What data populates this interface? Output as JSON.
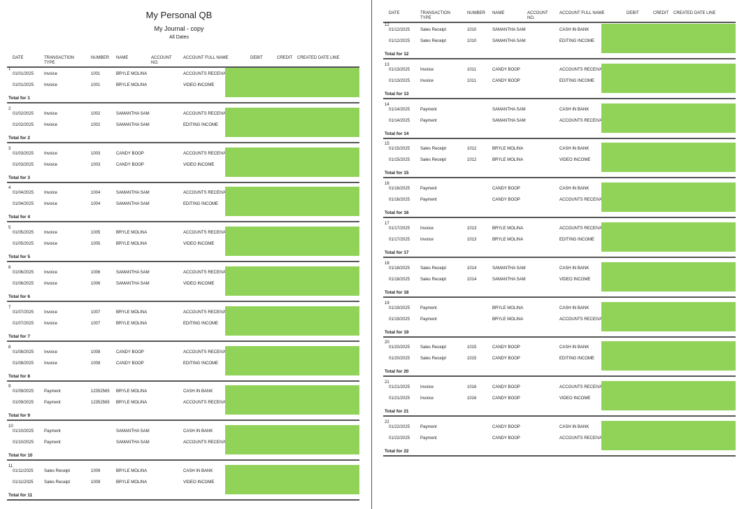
{
  "report": {
    "title": "My Personal QB",
    "subtitle": "My Journal - copy",
    "date_range": "All Dates"
  },
  "columns": [
    {
      "key": "date",
      "label": "DATE"
    },
    {
      "key": "type",
      "label": "TRANSACTION TYPE"
    },
    {
      "key": "number",
      "label": "NUMBER"
    },
    {
      "key": "name",
      "label": "NAME"
    },
    {
      "key": "acct_no",
      "label": "ACCOUNT NO."
    },
    {
      "key": "acct_full",
      "label": "ACCOUNT FULL NAME"
    },
    {
      "key": "debit",
      "label": "DEBIT"
    },
    {
      "key": "credit",
      "label": "CREDIT"
    },
    {
      "key": "created",
      "label": "CREATED DATE LINE"
    }
  ],
  "total_prefix": "Total for",
  "groups": [
    {
      "id": "1",
      "rows": [
        {
          "date": "01/01/2025",
          "type": "Invoice",
          "number": "1001",
          "name": "BRYLE MOLINA",
          "account": "ACCOUNTS RECEIVABLE"
        },
        {
          "date": "01/01/2025",
          "type": "Invoice",
          "number": "1001",
          "name": "BRYLE MOLINA",
          "account": "VIDEO INCOME"
        }
      ]
    },
    {
      "id": "2",
      "rows": [
        {
          "date": "01/02/2025",
          "type": "Invoice",
          "number": "1002",
          "name": "SAMANTHA SAM",
          "account": "ACCOUNTS RECEIVABLE"
        },
        {
          "date": "01/02/2025",
          "type": "Invoice",
          "number": "1002",
          "name": "SAMANTHA SAM",
          "account": "EDITING INCOME"
        }
      ]
    },
    {
      "id": "3",
      "rows": [
        {
          "date": "01/03/2025",
          "type": "Invoice",
          "number": "1003",
          "name": "CANDY BOOP",
          "account": "ACCOUNTS RECEIVABLE"
        },
        {
          "date": "01/03/2025",
          "type": "Invoice",
          "number": "1003",
          "name": "CANDY BOOP",
          "account": "VIDEO INCOME"
        }
      ]
    },
    {
      "id": "4",
      "rows": [
        {
          "date": "01/04/2025",
          "type": "Invoice",
          "number": "1004",
          "name": "SAMANTHA SAM",
          "account": "ACCOUNTS RECEIVABLE"
        },
        {
          "date": "01/04/2025",
          "type": "Invoice",
          "number": "1004",
          "name": "SAMANTHA SAM",
          "account": "EDITING INCOME"
        }
      ]
    },
    {
      "id": "5",
      "rows": [
        {
          "date": "01/05/2025",
          "type": "Invoice",
          "number": "1005",
          "name": "BRYLE MOLINA",
          "account": "ACCOUNTS RECEIVABLE"
        },
        {
          "date": "01/05/2025",
          "type": "Invoice",
          "number": "1005",
          "name": "BRYLE MOLINA",
          "account": "VIDEO INCOME"
        }
      ]
    },
    {
      "id": "6",
      "rows": [
        {
          "date": "01/06/2025",
          "type": "Invoice",
          "number": "1006",
          "name": "SAMANTHA SAM",
          "account": "ACCOUNTS RECEIVABLE"
        },
        {
          "date": "01/06/2025",
          "type": "Invoice",
          "number": "1006",
          "name": "SAMANTHA SAM",
          "account": "VIDEO INCOME"
        }
      ]
    },
    {
      "id": "7",
      "rows": [
        {
          "date": "01/07/2025",
          "type": "Invoice",
          "number": "1007",
          "name": "BRYLE MOLINA",
          "account": "ACCOUNTS RECEIVABLE"
        },
        {
          "date": "01/07/2025",
          "type": "Invoice",
          "number": "1007",
          "name": "BRYLE MOLINA",
          "account": "EDITING INCOME"
        }
      ]
    },
    {
      "id": "8",
      "rows": [
        {
          "date": "01/08/2025",
          "type": "Invoice",
          "number": "1008",
          "name": "CANDY BOOP",
          "account": "ACCOUNTS RECEIVABLE"
        },
        {
          "date": "01/08/2025",
          "type": "Invoice",
          "number": "1008",
          "name": "CANDY BOOP",
          "account": "EDITING INCOME"
        }
      ]
    },
    {
      "id": "9",
      "rows": [
        {
          "date": "01/09/2025",
          "type": "Payment",
          "number": "12352565",
          "name": "BRYLE MOLINA",
          "account": "CASH IN BANK"
        },
        {
          "date": "01/09/2025",
          "type": "Payment",
          "number": "12352565",
          "name": "BRYLE MOLINA",
          "account": "ACCOUNTS RECEIVABLE"
        }
      ]
    },
    {
      "id": "10",
      "rows": [
        {
          "date": "01/10/2025",
          "type": "Payment",
          "number": "",
          "name": "SAMANTHA SAM",
          "account": "CASH IN BANK"
        },
        {
          "date": "01/10/2025",
          "type": "Payment",
          "number": "",
          "name": "SAMANTHA SAM",
          "account": "ACCOUNTS RECEIVABLE"
        }
      ]
    },
    {
      "id": "11",
      "rows": [
        {
          "date": "01/11/2025",
          "type": "Sales Receipt",
          "number": "1009",
          "name": "BRYLE MOLINA",
          "account": "CASH IN BANK"
        },
        {
          "date": "01/11/2025",
          "type": "Sales Receipt",
          "number": "1009",
          "name": "BRYLE MOLINA",
          "account": "VIDEO INCOME"
        }
      ]
    },
    {
      "id": "12",
      "rows": [
        {
          "date": "01/12/2025",
          "type": "Sales Receipt",
          "number": "1010",
          "name": "SAMANTHA SAM",
          "account": "CASH IN BANK"
        },
        {
          "date": "01/12/2025",
          "type": "Sales Receipt",
          "number": "1010",
          "name": "SAMANTHA SAM",
          "account": "EDITING INCOME"
        }
      ]
    },
    {
      "id": "13",
      "rows": [
        {
          "date": "01/13/2025",
          "type": "Invoice",
          "number": "1011",
          "name": "CANDY BOOP",
          "account": "ACCOUNTS RECEIVABLE"
        },
        {
          "date": "01/13/2025",
          "type": "Invoice",
          "number": "1011",
          "name": "CANDY BOOP",
          "account": "EDITING INCOME"
        }
      ]
    },
    {
      "id": "14",
      "rows": [
        {
          "date": "01/14/2025",
          "type": "Payment",
          "number": "",
          "name": "SAMANTHA SAM",
          "account": "CASH IN BANK"
        },
        {
          "date": "01/14/2025",
          "type": "Payment",
          "number": "",
          "name": "SAMANTHA SAM",
          "account": "ACCOUNTS RECEIVABLE"
        }
      ]
    },
    {
      "id": "15",
      "rows": [
        {
          "date": "01/15/2025",
          "type": "Sales Receipt",
          "number": "1012",
          "name": "BRYLE MOLINA",
          "account": "CASH IN BANK"
        },
        {
          "date": "01/15/2025",
          "type": "Sales Receipt",
          "number": "1012",
          "name": "BRYLE MOLINA",
          "account": "VIDEO INCOME"
        }
      ]
    },
    {
      "id": "16",
      "rows": [
        {
          "date": "01/16/2025",
          "type": "Payment",
          "number": "",
          "name": "CANDY BOOP",
          "account": "CASH IN BANK"
        },
        {
          "date": "01/16/2025",
          "type": "Payment",
          "number": "",
          "name": "CANDY BOOP",
          "account": "ACCOUNTS RECEIVABLE"
        }
      ]
    },
    {
      "id": "17",
      "rows": [
        {
          "date": "01/17/2025",
          "type": "Invoice",
          "number": "1013",
          "name": "BRYLE MOLINA",
          "account": "ACCOUNTS RECEIVABLE"
        },
        {
          "date": "01/17/2025",
          "type": "Invoice",
          "number": "1013",
          "name": "BRYLE MOLINA",
          "account": "EDITING INCOME"
        }
      ]
    },
    {
      "id": "18",
      "rows": [
        {
          "date": "01/18/2025",
          "type": "Sales Receipt",
          "number": "1014",
          "name": "SAMANTHA SAM",
          "account": "CASH IN BANK"
        },
        {
          "date": "01/18/2025",
          "type": "Sales Receipt",
          "number": "1014",
          "name": "SAMANTHA SAM",
          "account": "VIDEO INCOME"
        }
      ]
    },
    {
      "id": "19",
      "rows": [
        {
          "date": "01/19/2025",
          "type": "Payment",
          "number": "",
          "name": "BRYLE MOLINA",
          "account": "CASH IN BANK"
        },
        {
          "date": "01/19/2025",
          "type": "Payment",
          "number": "",
          "name": "BRYLE MOLINA",
          "account": "ACCOUNTS RECEIVABLE"
        }
      ]
    },
    {
      "id": "20",
      "rows": [
        {
          "date": "01/20/2025",
          "type": "Sales Receipt",
          "number": "1015",
          "name": "CANDY BOOP",
          "account": "CASH IN BANK"
        },
        {
          "date": "01/20/2025",
          "type": "Sales Receipt",
          "number": "1015",
          "name": "CANDY BOOP",
          "account": "EDITING INCOME"
        }
      ]
    },
    {
      "id": "21",
      "rows": [
        {
          "date": "01/21/2025",
          "type": "Invoice",
          "number": "1016",
          "name": "CANDY BOOP",
          "account": "ACCOUNTS RECEIVABLE"
        },
        {
          "date": "01/21/2025",
          "type": "Invoice",
          "number": "1016",
          "name": "CANDY BOOP",
          "account": "VIDEO INCOME"
        }
      ]
    },
    {
      "id": "22",
      "rows": [
        {
          "date": "01/22/2025",
          "type": "Payment",
          "number": "",
          "name": "CANDY BOOP",
          "account": "CASH IN BANK"
        },
        {
          "date": "01/22/2025",
          "type": "Payment",
          "number": "",
          "name": "CANDY BOOP",
          "account": "ACCOUNTS RECEIVABLE"
        }
      ]
    }
  ],
  "colors": {
    "redaction": "#90d358",
    "rule": "#555555"
  }
}
